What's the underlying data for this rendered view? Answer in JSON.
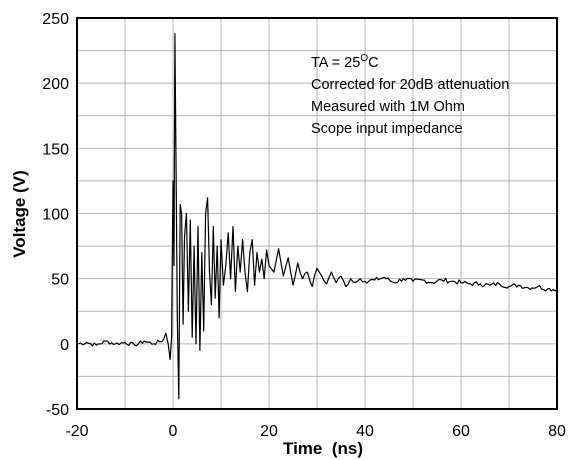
{
  "chart_data": {
    "type": "line",
    "title": "",
    "xlabel": "Time  (ns)",
    "ylabel": "Voltage (V)",
    "xlim": [
      -20,
      80
    ],
    "ylim": [
      -50,
      250
    ],
    "grid": true,
    "legend": "none",
    "x_ticks": [
      "-20",
      "0",
      "20",
      "40",
      "60",
      "80"
    ],
    "y_ticks": [
      "-50",
      "0",
      "50",
      "100",
      "150",
      "200",
      "250"
    ],
    "annotations": {
      "line1_prefix": "TA = 25",
      "line1_sup": "O",
      "line1_suffix": "C",
      "line2": "Corrected for 20dB attenuation",
      "line3": "Measured with 1M Ohm",
      "line4": "Scope input impedance"
    },
    "series": [
      {
        "color": "#000000",
        "x": [
          -20,
          -18,
          -16,
          -14,
          -12,
          -10,
          -8,
          -6,
          -4,
          -2,
          -1.5,
          -1,
          -0.6,
          -0.3,
          0,
          0.2,
          0.4,
          0.6,
          0.9,
          1.2,
          1.5,
          1.8,
          2.1,
          2.4,
          2.8,
          3.2,
          3.6,
          4,
          4.4,
          4.8,
          5.2,
          5.6,
          6,
          6.4,
          6.8,
          7.2,
          7.6,
          8,
          8.4,
          8.8,
          9.2,
          9.6,
          10,
          10.5,
          11,
          11.5,
          12,
          12.5,
          13,
          13.5,
          14,
          14.5,
          15,
          15.5,
          16,
          16.5,
          17,
          17.5,
          18,
          18.5,
          19,
          19.5,
          20,
          21,
          22,
          23,
          24,
          25,
          26,
          27,
          28,
          29,
          30,
          31,
          32,
          33,
          34,
          35,
          36,
          37,
          38,
          39,
          40,
          42,
          44,
          46,
          48,
          50,
          52,
          54,
          56,
          58,
          60,
          62,
          64,
          66,
          68,
          70,
          72,
          74,
          76,
          78,
          80
        ],
        "y": [
          0,
          1,
          -1,
          2,
          0,
          1,
          -1,
          2,
          0,
          3,
          8,
          0,
          -12,
          5,
          125,
          60,
          238,
          150,
          20,
          -42,
          107,
          100,
          15,
          82,
          100,
          25,
          95,
          5,
          75,
          0,
          90,
          -5,
          70,
          10,
          100,
          112,
          55,
          30,
          90,
          35,
          75,
          20,
          80,
          45,
          60,
          85,
          50,
          90,
          40,
          75,
          55,
          80,
          55,
          40,
          70,
          80,
          45,
          70,
          55,
          65,
          50,
          72,
          60,
          55,
          73,
          52,
          66,
          45,
          62,
          50,
          55,
          44,
          58,
          52,
          46,
          55,
          47,
          52,
          44,
          50,
          47,
          50,
          48,
          49,
          51,
          47,
          50,
          48,
          49,
          47,
          49,
          48,
          47,
          46,
          46,
          45,
          46,
          44,
          45,
          43,
          44,
          42,
          42
        ]
      }
    ]
  }
}
